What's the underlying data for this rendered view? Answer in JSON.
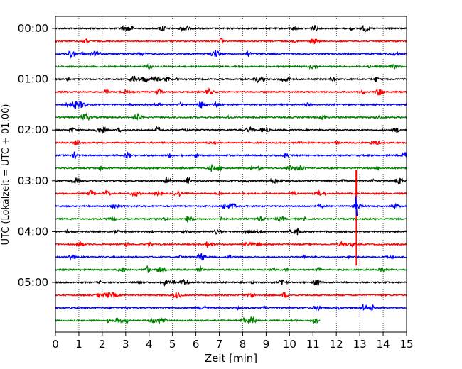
{
  "chart_data": {
    "type": "line",
    "xlabel": "Zeit  [min]",
    "ylabel": "UTC (Lokalzeit = UTC + 01:00)",
    "xlim": [
      0,
      15
    ],
    "x_ticks": [
      "0",
      "1",
      "2",
      "3",
      "4",
      "5",
      "6",
      "7",
      "8",
      "9",
      "10",
      "11",
      "12",
      "13",
      "14",
      "15"
    ],
    "y_tick_labels": [
      "00:00",
      "01:00",
      "02:00",
      "03:00",
      "04:00",
      "05:00"
    ],
    "grid": "vertical dotted lines at each minute",
    "row_interval_minutes": 15,
    "row_count": 24,
    "last_row_end_minute": 11.3,
    "color_cycle": [
      "#000000",
      "#ff0000",
      "#0000ff",
      "#008000"
    ],
    "events": [
      {
        "minute": 12.85,
        "start_row_time": "03:00",
        "end_row_time": "04:30",
        "description": "large amplitude spike spanning multiple rows"
      }
    ]
  }
}
